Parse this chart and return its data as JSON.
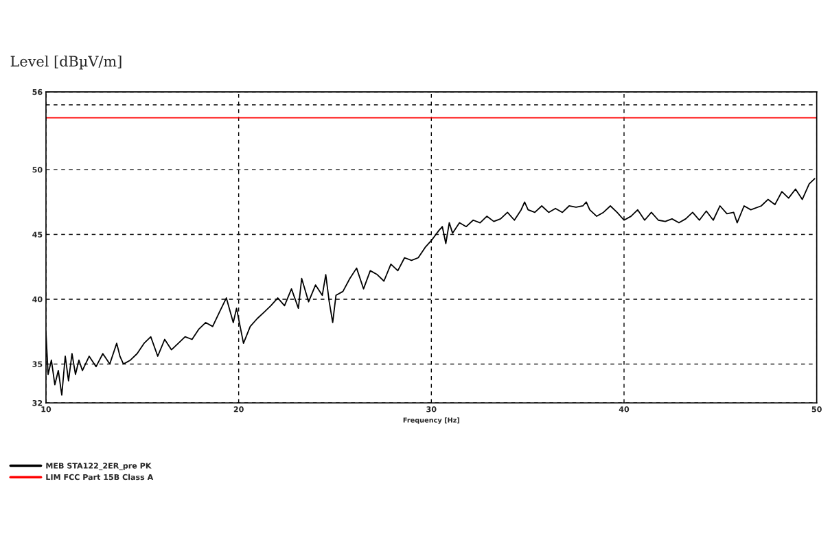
{
  "chart_data": {
    "type": "line",
    "xlabel": "Frequency [Hz]",
    "ylabel": "Level [dBµV/m]",
    "xlim": [
      10,
      50
    ],
    "ylim": [
      32,
      56
    ],
    "xticks": [
      10,
      20,
      30,
      40,
      50
    ],
    "yticks": [
      32,
      35,
      40,
      45,
      50,
      {
        "value": 55,
        "label": null
      },
      56
    ],
    "grid": true,
    "legend": "bottom left",
    "line_style": "solid",
    "series": [
      {
        "name": "MEB STA122_2ER_pre PK",
        "color": "#000000",
        "x": [
          10.0,
          10.11,
          10.28,
          10.46,
          10.64,
          10.82,
          11.0,
          11.17,
          11.35,
          11.53,
          11.71,
          11.89,
          12.24,
          12.6,
          12.95,
          13.31,
          13.67,
          13.84,
          14.02,
          14.38,
          14.73,
          15.09,
          15.44,
          15.8,
          16.16,
          16.51,
          16.87,
          17.22,
          17.58,
          17.94,
          18.29,
          18.65,
          19.0,
          19.36,
          19.72,
          19.89,
          20.25,
          20.6,
          20.96,
          21.32,
          21.67,
          22.03,
          22.38,
          22.74,
          23.1,
          23.27,
          23.63,
          23.99,
          24.34,
          24.52,
          24.7,
          24.88,
          25.05,
          25.41,
          25.77,
          26.12,
          26.48,
          26.83,
          27.19,
          27.54,
          27.9,
          28.26,
          28.61,
          28.97,
          29.32,
          29.68,
          30.04,
          30.39,
          30.57,
          30.75,
          30.93,
          31.1,
          31.46,
          31.81,
          32.17,
          32.53,
          32.88,
          33.24,
          33.59,
          33.95,
          34.31,
          34.66,
          34.84,
          35.02,
          35.37,
          35.73,
          36.09,
          36.44,
          36.8,
          37.15,
          37.51,
          37.86,
          38.04,
          38.22,
          38.58,
          38.93,
          39.29,
          39.64,
          40.0,
          40.36,
          40.71,
          41.07,
          41.42,
          41.78,
          42.14,
          42.49,
          42.85,
          43.2,
          43.56,
          43.91,
          44.27,
          44.63,
          44.98,
          45.34,
          45.69,
          45.87,
          46.23,
          46.58,
          47.12,
          47.47,
          47.83,
          48.19,
          48.54,
          48.9,
          49.25,
          49.61,
          49.89
        ],
        "values": [
          37.4,
          34.2,
          35.3,
          33.4,
          34.5,
          32.6,
          35.6,
          33.7,
          35.8,
          34.2,
          35.3,
          34.5,
          35.6,
          34.8,
          35.8,
          35.0,
          36.6,
          35.6,
          35.0,
          35.3,
          35.8,
          36.6,
          37.1,
          35.6,
          36.9,
          36.1,
          36.6,
          37.1,
          36.9,
          37.7,
          38.2,
          37.9,
          39.0,
          40.1,
          38.2,
          39.3,
          36.6,
          37.9,
          38.5,
          39.0,
          39.5,
          40.1,
          39.5,
          40.8,
          39.3,
          41.6,
          39.8,
          41.1,
          40.3,
          41.9,
          39.8,
          38.2,
          40.3,
          40.6,
          41.6,
          42.4,
          40.8,
          42.2,
          41.9,
          41.4,
          42.7,
          42.2,
          43.2,
          43.0,
          43.2,
          44.0,
          44.6,
          45.3,
          45.6,
          44.3,
          45.9,
          45.1,
          45.9,
          45.6,
          46.1,
          45.9,
          46.4,
          46.0,
          46.2,
          46.7,
          46.1,
          46.9,
          47.5,
          46.9,
          46.7,
          47.2,
          46.7,
          47.0,
          46.7,
          47.2,
          47.1,
          47.2,
          47.5,
          46.9,
          46.4,
          46.7,
          47.2,
          46.7,
          46.1,
          46.4,
          46.9,
          46.1,
          46.7,
          46.1,
          46.0,
          46.2,
          45.9,
          46.2,
          46.7,
          46.1,
          46.8,
          46.1,
          47.2,
          46.6,
          46.7,
          45.9,
          47.2,
          46.9,
          47.2,
          47.7,
          47.3,
          48.3,
          47.8,
          48.5,
          47.7,
          48.9,
          49.3
        ]
      },
      {
        "name": "LIM FCC Part 15B Class A",
        "color": "#ff0000",
        "x": [
          10,
          50
        ],
        "values": [
          54,
          54
        ]
      }
    ]
  }
}
